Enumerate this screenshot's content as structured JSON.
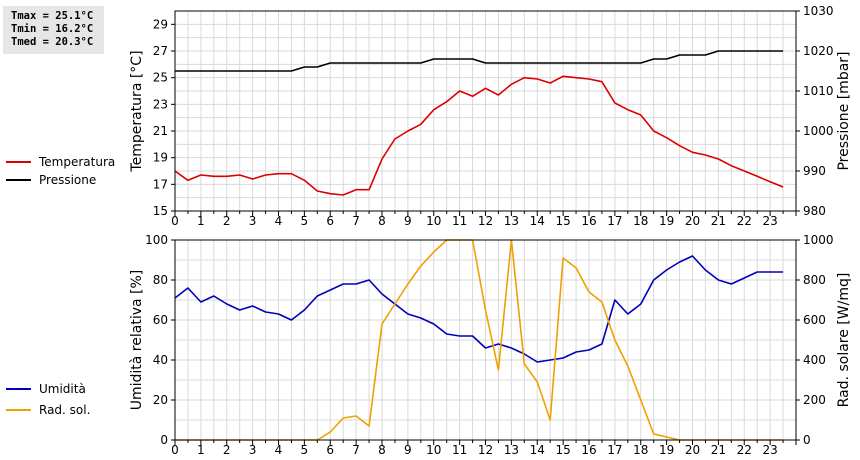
{
  "stats": {
    "tmax": "Tmax = 25.1°C",
    "tmin": "Tmin = 16.2°C",
    "tmed": "Tmed = 20.3°C"
  },
  "chart_data": [
    {
      "type": "line",
      "x_ticks": [
        "0",
        "1",
        "2",
        "3",
        "4",
        "5",
        "6",
        "7",
        "8",
        "9",
        "10",
        "11",
        "12",
        "13",
        "14",
        "15",
        "16",
        "17",
        "18",
        "19",
        "20",
        "21",
        "22",
        "23"
      ],
      "xlim": [
        0,
        24
      ],
      "ylabel": "Temperatura [°C]",
      "ylim": [
        15,
        30
      ],
      "y_ticks": [
        15,
        17,
        19,
        21,
        23,
        25,
        27,
        29
      ],
      "y2label": "Pressione [mbar]",
      "y2lim": [
        980,
        1030
      ],
      "y2_ticks": [
        980,
        990,
        1000,
        1010,
        1020,
        1030
      ],
      "grid": true,
      "legend": "left",
      "series": [
        {
          "name": "Temperatura",
          "color": "#dd0000",
          "axis": "left",
          "x": [
            0,
            0.5,
            1,
            1.5,
            2,
            2.5,
            3,
            3.5,
            4,
            4.5,
            5,
            5.5,
            6,
            6.5,
            7,
            7.5,
            8,
            8.5,
            9,
            9.5,
            10,
            10.5,
            11,
            11.5,
            12,
            12.5,
            13,
            13.5,
            14,
            14.5,
            15,
            15.5,
            16,
            16.5,
            17,
            17.5,
            18,
            18.5,
            19,
            19.5,
            20,
            20.5,
            21,
            21.5,
            22,
            22.5,
            23,
            23.5
          ],
          "y": [
            18.0,
            17.3,
            17.7,
            17.6,
            17.6,
            17.7,
            17.4,
            17.7,
            17.8,
            17.8,
            17.3,
            16.5,
            16.3,
            16.2,
            16.6,
            16.6,
            18.9,
            20.4,
            21.0,
            21.5,
            22.6,
            23.2,
            24.0,
            23.6,
            24.2,
            23.7,
            24.5,
            25.0,
            24.9,
            24.6,
            25.1,
            25.0,
            24.9,
            24.7,
            23.1,
            22.6,
            22.2,
            21.0,
            20.5,
            19.9,
            19.4,
            19.2,
            18.9,
            18.4,
            18.0,
            17.6,
            17.2,
            16.8
          ]
        },
        {
          "name": "Pressione",
          "color": "#000000",
          "axis": "right",
          "x": [
            0,
            0.5,
            1,
            1.5,
            2,
            2.5,
            3,
            3.5,
            4,
            4.5,
            5,
            5.5,
            6,
            6.5,
            7,
            7.5,
            8,
            8.5,
            9,
            9.5,
            10,
            10.5,
            11,
            11.5,
            12,
            12.5,
            13,
            13.5,
            14,
            14.5,
            15,
            15.5,
            16,
            16.5,
            17,
            17.5,
            18,
            18.5,
            19,
            19.5,
            20,
            20.5,
            21,
            21.5,
            22,
            22.5,
            23,
            23.5
          ],
          "y": [
            1015,
            1015,
            1015,
            1015,
            1015,
            1015,
            1015,
            1015,
            1015,
            1015,
            1016,
            1016,
            1017,
            1017,
            1017,
            1017,
            1017,
            1017,
            1017,
            1017,
            1018,
            1018,
            1018,
            1018,
            1017,
            1017,
            1017,
            1017,
            1017,
            1017,
            1017,
            1017,
            1017,
            1017,
            1017,
            1017,
            1017,
            1018,
            1018,
            1019,
            1019,
            1019,
            1020,
            1020,
            1020,
            1020,
            1020,
            1020
          ]
        }
      ]
    },
    {
      "type": "line",
      "x_ticks": [
        "0",
        "1",
        "2",
        "3",
        "4",
        "5",
        "6",
        "7",
        "8",
        "9",
        "10",
        "11",
        "12",
        "13",
        "14",
        "15",
        "16",
        "17",
        "18",
        "19",
        "20",
        "21",
        "22",
        "23"
      ],
      "xlim": [
        0,
        24
      ],
      "ylabel": "Umidità relativa [%]",
      "ylim": [
        0,
        100
      ],
      "y_ticks": [
        0,
        20,
        40,
        60,
        80,
        100
      ],
      "y2label": "Rad. solare [W/mq]",
      "y2lim": [
        0,
        1000
      ],
      "y2_ticks": [
        0,
        200,
        400,
        600,
        800,
        1000
      ],
      "grid": true,
      "legend": "left",
      "series": [
        {
          "name": "Umidità",
          "color": "#0000bb",
          "axis": "left",
          "x": [
            0,
            0.5,
            1,
            1.5,
            2,
            2.5,
            3,
            3.5,
            4,
            4.5,
            5,
            5.5,
            6,
            6.5,
            7,
            7.5,
            8,
            8.5,
            9,
            9.5,
            10,
            10.5,
            11,
            11.5,
            12,
            12.5,
            13,
            13.5,
            14,
            14.5,
            15,
            15.5,
            16,
            16.5,
            17,
            17.5,
            18,
            18.5,
            19,
            19.5,
            20,
            20.5,
            21,
            21.5,
            22,
            22.5,
            23,
            23.5
          ],
          "y": [
            71,
            76,
            69,
            72,
            68,
            65,
            67,
            64,
            63,
            60,
            65,
            72,
            75,
            78,
            78,
            80,
            73,
            68,
            63,
            61,
            58,
            53,
            52,
            52,
            46,
            48,
            46,
            43,
            39,
            40,
            41,
            44,
            45,
            48,
            70,
            63,
            68,
            80,
            85,
            89,
            92,
            85,
            80,
            78,
            81,
            84,
            84,
            84
          ]
        },
        {
          "name": "Rad. sol.",
          "color": "#f0a000",
          "axis": "right",
          "x": [
            0,
            0.5,
            1,
            1.5,
            2,
            2.5,
            3,
            3.5,
            4,
            4.5,
            5,
            5.5,
            6,
            6.5,
            7,
            7.5,
            8,
            8.5,
            9,
            9.5,
            10,
            10.5,
            11,
            11.5,
            12,
            12.5,
            13,
            13.5,
            14,
            14.5,
            15,
            15.5,
            16,
            16.5,
            17,
            17.5,
            18,
            18.5,
            19,
            19.5,
            20,
            20.5,
            21,
            21.5,
            22,
            22.5,
            23,
            23.5
          ],
          "y": [
            0,
            0,
            0,
            0,
            0,
            0,
            0,
            0,
            0,
            0,
            0,
            0,
            40,
            110,
            120,
            70,
            580,
            680,
            780,
            870,
            940,
            1000,
            1000,
            1000,
            650,
            350,
            1010,
            380,
            290,
            100,
            910,
            860,
            740,
            690,
            500,
            370,
            200,
            30,
            15,
            0,
            0,
            0,
            0,
            0,
            0,
            0,
            0,
            0
          ]
        }
      ]
    }
  ]
}
